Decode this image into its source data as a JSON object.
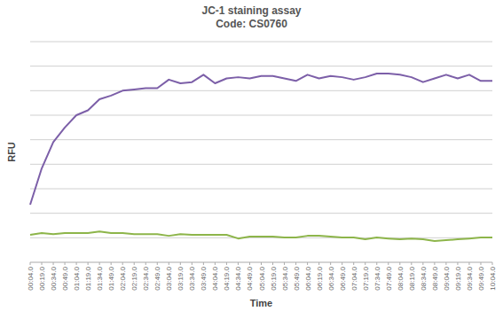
{
  "chart_data": {
    "type": "line",
    "title": "JC-1 staining assay",
    "subtitle": "Code: CS0760",
    "x_label": "Time",
    "y_label": "RFU",
    "categories": [
      "00:04.0",
      "00:19.0",
      "00:34.0",
      "00:49.0",
      "01:04.0",
      "01:19.0",
      "01:34.0",
      "01:49.0",
      "02:04.0",
      "02:19.0",
      "02:34.0",
      "02:49.0",
      "03:04.0",
      "03:19.0",
      "03:34.0",
      "03:49.0",
      "04:04.0",
      "04:19.0",
      "04:34.0",
      "04:49.0",
      "05:04.0",
      "05:19.0",
      "05:34.0",
      "05:49.0",
      "06:04.0",
      "06:19.0",
      "06:34.0",
      "06:49.0",
      "07:04.0",
      "07:19.0",
      "07:34.0",
      "07:49.0",
      "08:04.0",
      "08:19.0",
      "08:34.0",
      "08:49.0",
      "09:04.0",
      "09:19.0",
      "09:34.0",
      "09:49.0",
      "10:04.0"
    ],
    "series": [
      {
        "color": "#7c5fa8",
        "values": [
          2.35,
          3.83,
          4.9,
          5.5,
          6.0,
          6.2,
          6.65,
          6.8,
          7.0,
          7.05,
          7.1,
          7.1,
          7.45,
          7.3,
          7.35,
          7.65,
          7.3,
          7.5,
          7.55,
          7.5,
          7.6,
          7.6,
          7.5,
          7.4,
          7.65,
          7.5,
          7.6,
          7.55,
          7.45,
          7.55,
          7.7,
          7.7,
          7.65,
          7.55,
          7.35,
          7.5,
          7.65,
          7.5,
          7.65,
          7.4,
          7.4
        ]
      },
      {
        "color": "#8db54a",
        "values": [
          1.12,
          1.19,
          1.15,
          1.19,
          1.19,
          1.19,
          1.26,
          1.19,
          1.19,
          1.15,
          1.15,
          1.15,
          1.08,
          1.15,
          1.12,
          1.12,
          1.12,
          1.12,
          0.97,
          1.05,
          1.05,
          1.05,
          1.01,
          1.01,
          1.08,
          1.08,
          1.05,
          1.01,
          1.01,
          0.94,
          1.01,
          0.97,
          0.94,
          0.97,
          0.94,
          0.87,
          0.9,
          0.94,
          0.97,
          1.01,
          1.01
        ]
      }
    ],
    "ylim": [
      0,
      9
    ],
    "yticks": [
      0,
      1,
      2,
      3,
      4,
      5,
      6,
      7,
      8,
      9
    ],
    "grid": true,
    "tick_labels": "x"
  }
}
